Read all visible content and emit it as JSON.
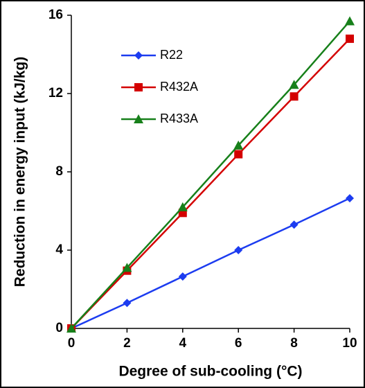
{
  "chart_data": {
    "type": "line",
    "xlabel": "Degree of sub-cooling (°C)",
    "ylabel": "Reduction in energy input (kJ/kg)",
    "x": [
      0,
      2,
      4,
      6,
      8,
      10
    ],
    "series": [
      {
        "name": "R22",
        "color": "#1c3cf0",
        "marker": "diamond",
        "values": [
          0,
          1.3,
          2.65,
          4.0,
          5.3,
          6.65
        ]
      },
      {
        "name": "R432A",
        "color": "#d40000",
        "marker": "square",
        "values": [
          0,
          2.95,
          5.9,
          8.9,
          11.85,
          14.8
        ]
      },
      {
        "name": "R433A",
        "color": "#17801a",
        "marker": "triangle",
        "values": [
          0,
          3.1,
          6.2,
          9.35,
          12.45,
          15.7
        ]
      }
    ],
    "xlim": [
      0,
      10
    ],
    "xticks": [
      0,
      2,
      4,
      6,
      8,
      10
    ],
    "ylim": [
      0,
      16
    ],
    "yticks": [
      0,
      4,
      8,
      12,
      16
    ],
    "legend": "upper left"
  }
}
